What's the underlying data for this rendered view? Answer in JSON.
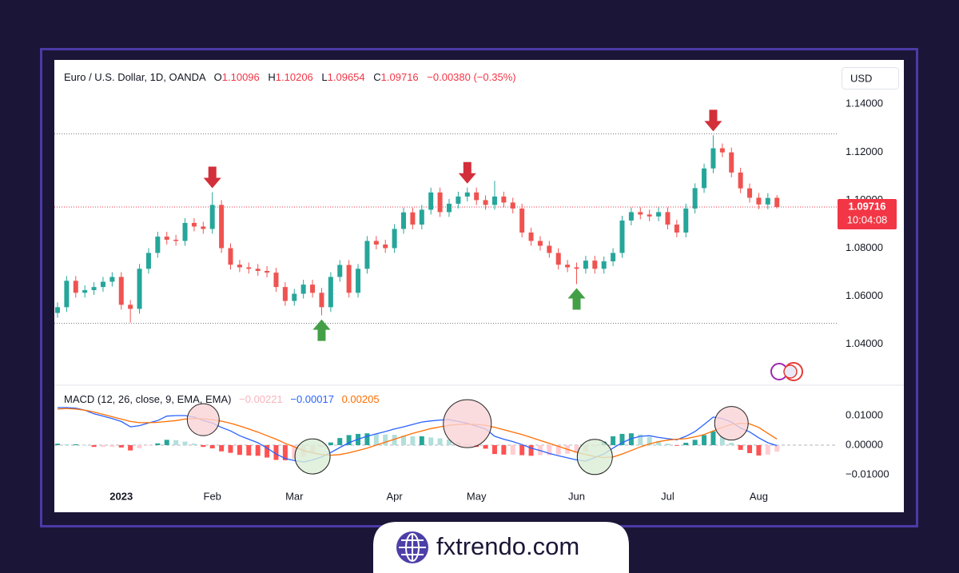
{
  "chart_data": [
    {
      "type": "candlestick",
      "title": "Euro / U.S. Dollar, 1D, OANDA",
      "ohlc_names": [
        "O",
        "H",
        "L",
        "C"
      ],
      "change": "−0.00380 (−0.35%)",
      "currency": "USD",
      "countdown": "10:04:08",
      "x": [
        0,
        1,
        2,
        3,
        4,
        5,
        6,
        7,
        8,
        9,
        10,
        11,
        12,
        13,
        14,
        15,
        16,
        17,
        18,
        19,
        20,
        21,
        22,
        23,
        24,
        25,
        26,
        27,
        28,
        29,
        30,
        31,
        32,
        33,
        34,
        35,
        36,
        37,
        38,
        39,
        40,
        41,
        42,
        43,
        44,
        45,
        46,
        47,
        48,
        49,
        50,
        51,
        52,
        53,
        54,
        55,
        56,
        57,
        58,
        59,
        60,
        61,
        62,
        63,
        64,
        65,
        66,
        67,
        68,
        69,
        70,
        71,
        72,
        73,
        74,
        75,
        76,
        77,
        78,
        79
      ],
      "open": [
        1.053,
        1.0554,
        1.0664,
        1.0614,
        1.0625,
        1.0638,
        1.066,
        1.068,
        1.0564,
        1.0547,
        1.0714,
        1.078,
        1.0848,
        1.0835,
        1.083,
        1.0905,
        1.089,
        1.088,
        1.098,
        1.08,
        1.0731,
        1.072,
        1.0714,
        1.0705,
        1.0698,
        1.0638,
        1.058,
        1.061,
        1.0648,
        1.0614,
        1.0554,
        1.068,
        1.073,
        1.0614,
        1.0714,
        1.083,
        1.0815,
        1.08,
        1.088,
        1.0949,
        1.0898,
        1.096,
        1.1032,
        1.095,
        1.0985,
        1.1015,
        1.1032,
        1.1,
        1.098,
        1.1015,
        1.099,
        1.0965,
        1.0865,
        1.083,
        1.081,
        1.078,
        1.0731,
        1.072,
        1.0714,
        1.0748,
        1.0714,
        1.0745,
        1.078,
        1.0915,
        1.095,
        1.094,
        1.0932,
        1.095,
        1.0898,
        1.0865,
        1.0965,
        1.105,
        1.1132,
        1.1216,
        1.1199,
        1.1115,
        1.1049,
        1.101,
        1.0982,
        1.10096
      ],
      "high": [
        1.0574,
        1.0684,
        1.0684,
        1.0645,
        1.0658,
        1.068,
        1.07,
        1.07,
        1.0584,
        1.0734,
        1.08,
        1.0868,
        1.0868,
        1.0855,
        1.0925,
        1.0925,
        1.091,
        1.1033,
        1.1,
        1.082,
        1.0751,
        1.074,
        1.0734,
        1.0725,
        1.0718,
        1.0658,
        1.063,
        1.0668,
        1.0668,
        1.0634,
        1.07,
        1.075,
        1.075,
        1.0734,
        1.085,
        1.085,
        1.0835,
        1.09,
        1.0969,
        1.0969,
        1.098,
        1.1052,
        1.1052,
        1.1005,
        1.1035,
        1.1052,
        1.1052,
        1.102,
        1.108,
        1.1035,
        1.101,
        1.0985,
        1.0885,
        1.085,
        1.083,
        1.08,
        1.0751,
        1.074,
        1.0768,
        1.0768,
        1.0765,
        1.08,
        1.0935,
        1.097,
        1.097,
        1.096,
        1.097,
        1.097,
        1.0918,
        1.0985,
        1.107,
        1.1152,
        1.127,
        1.1236,
        1.1219,
        1.1135,
        1.1069,
        1.103,
        1.1029,
        1.10206
      ],
      "low": [
        1.051,
        1.0534,
        1.0594,
        1.0594,
        1.0605,
        1.0618,
        1.064,
        1.0544,
        1.049,
        1.0527,
        1.0694,
        1.076,
        1.0815,
        1.081,
        1.081,
        1.087,
        1.086,
        1.086,
        1.078,
        1.0711,
        1.07,
        1.0694,
        1.0685,
        1.0678,
        1.0618,
        1.056,
        1.056,
        1.059,
        1.0594,
        1.052,
        1.0534,
        1.066,
        1.0594,
        1.0594,
        1.0694,
        1.0795,
        1.078,
        1.078,
        1.086,
        1.0878,
        1.0878,
        1.094,
        1.093,
        1.093,
        1.0965,
        1.0995,
        1.098,
        1.096,
        1.096,
        1.097,
        1.0945,
        1.0845,
        1.081,
        1.079,
        1.076,
        1.0711,
        1.07,
        1.065,
        1.0694,
        1.0694,
        1.0694,
        1.0725,
        1.076,
        1.0895,
        1.092,
        1.0912,
        1.0912,
        1.0878,
        1.0845,
        1.0845,
        1.0945,
        1.103,
        1.1112,
        1.1179,
        1.1095,
        1.1029,
        1.099,
        1.0962,
        1.0962,
        1.09654
      ],
      "close": [
        1.0554,
        1.0664,
        1.0614,
        1.0625,
        1.0638,
        1.066,
        1.068,
        1.0564,
        1.0547,
        1.0714,
        1.078,
        1.0848,
        1.0835,
        1.083,
        1.0905,
        1.089,
        1.088,
        1.098,
        1.08,
        1.0731,
        1.072,
        1.0714,
        1.0705,
        1.0698,
        1.0638,
        1.058,
        1.061,
        1.0648,
        1.0614,
        1.0554,
        1.068,
        1.073,
        1.0614,
        1.0714,
        1.083,
        1.0815,
        1.08,
        1.088,
        1.0949,
        1.0898,
        1.096,
        1.1032,
        1.095,
        1.0985,
        1.1015,
        1.1032,
        1.1,
        1.098,
        1.1015,
        1.099,
        1.0965,
        1.0865,
        1.083,
        1.081,
        1.078,
        1.0731,
        1.072,
        1.0714,
        1.0748,
        1.0714,
        1.0745,
        1.078,
        1.0915,
        1.095,
        1.094,
        1.0932,
        1.095,
        1.0898,
        1.0865,
        1.0965,
        1.105,
        1.1132,
        1.1216,
        1.1199,
        1.1115,
        1.1049,
        1.101,
        1.0982,
        1.1009,
        1.09716
      ],
      "xlim": [
        -0.35,
        85.65
      ],
      "ylim": [
        1.0229,
        1.1584
      ],
      "yticks": [
        {
          "value": 1.04,
          "label": "1.04000"
        },
        {
          "value": 1.06,
          "label": "1.06000"
        },
        {
          "value": 1.08,
          "label": "1.08000"
        },
        {
          "value": 1.1,
          "label": "1.10000"
        },
        {
          "value": 1.12,
          "label": "1.12000"
        },
        {
          "value": 1.14,
          "label": "1.14000"
        }
      ],
      "grid": false,
      "up_color": "#26a69a",
      "down_color": "#ef5350",
      "last_price_color": "#f23645",
      "levels": [
        1.1276,
        1.0487
      ],
      "level_color": "#787b86",
      "arrows": {
        "down": [
          17,
          45,
          72
        ],
        "up": [
          29,
          57
        ]
      },
      "arrow_colors": {
        "down": "#d32f3a",
        "up": "#43a047"
      }
    },
    {
      "type": "macd",
      "title": "MACD (12, 26, close, 9, EMA, EMA)",
      "x": [
        0,
        1,
        2,
        3,
        4,
        5,
        6,
        7,
        8,
        9,
        10,
        11,
        12,
        13,
        14,
        15,
        16,
        17,
        18,
        19,
        20,
        21,
        22,
        23,
        24,
        25,
        26,
        27,
        28,
        29,
        30,
        31,
        32,
        33,
        34,
        35,
        36,
        37,
        38,
        39,
        40,
        41,
        42,
        43,
        44,
        45,
        46,
        47,
        48,
        49,
        50,
        51,
        52,
        53,
        54,
        55,
        56,
        57,
        58,
        59,
        60,
        61,
        62,
        63,
        64,
        65,
        66,
        67,
        68,
        69,
        70,
        71,
        72,
        73,
        74,
        75,
        76,
        77,
        78,
        79
      ],
      "series": [
        {
          "kind": "histogram",
          "color": "#f7b4bd",
          "last_label": "−0.00221",
          "values": [
            0.0005,
            0.0003,
            0.0003,
            0.0,
            -0.0006,
            -0.0006,
            -0.0006,
            -0.0008,
            -0.0018,
            -0.001,
            -0.0001,
            0.0006,
            0.0018,
            0.0017,
            0.0012,
            0.0005,
            -0.0006,
            -0.0011,
            -0.0021,
            -0.0026,
            -0.0033,
            -0.0035,
            -0.0036,
            -0.0042,
            -0.005,
            -0.0051,
            -0.0046,
            -0.0039,
            -0.0024,
            -0.0008,
            0.0009,
            0.0024,
            0.0034,
            0.0038,
            0.004,
            0.0038,
            0.0036,
            0.0035,
            0.0032,
            0.003,
            0.003,
            0.0026,
            0.0023,
            0.0019,
            0.001,
            0.0003,
            -0.0006,
            -0.0012,
            -0.003,
            -0.0032,
            -0.0032,
            -0.0034,
            -0.0036,
            -0.0034,
            -0.0034,
            -0.0032,
            -0.0029,
            -0.0026,
            -0.0022,
            -0.0004,
            0.0012,
            0.003,
            0.0038,
            0.004,
            0.0036,
            0.0028,
            0.0014,
            0.0005,
            -0.0002,
            0.0008,
            0.0018,
            0.0034,
            0.0047,
            0.003,
            0.0008,
            -0.0016,
            -0.0027,
            -0.0035,
            -0.0032,
            -0.00221
          ]
        },
        {
          "kind": "line",
          "color": "#2962ff",
          "last_label": "−0.00017",
          "values": [
            0.0127,
            0.0127,
            0.0125,
            0.0118,
            0.0106,
            0.0098,
            0.009,
            0.008,
            0.0062,
            0.0066,
            0.0075,
            0.0083,
            0.0098,
            0.01,
            0.01,
            0.0095,
            0.0083,
            0.0075,
            0.006,
            0.0048,
            0.0032,
            0.002,
            0.0008,
            -0.001,
            -0.003,
            -0.0045,
            -0.0052,
            -0.0057,
            -0.005,
            -0.004,
            -0.0025,
            -0.0008,
            0.0008,
            0.002,
            0.003,
            0.0038,
            0.0046,
            0.0055,
            0.0062,
            0.007,
            0.0078,
            0.0082,
            0.0085,
            0.0086,
            0.008,
            0.0074,
            0.0064,
            0.0055,
            0.003,
            0.002,
            0.0012,
            0.0002,
            -0.001,
            -0.0018,
            -0.0028,
            -0.0036,
            -0.0043,
            -0.005,
            -0.0054,
            -0.0042,
            -0.003,
            -0.001,
            0.0008,
            0.0022,
            0.003,
            0.0032,
            0.0026,
            0.0022,
            0.0018,
            0.003,
            0.0046,
            0.007,
            0.0095,
            0.009,
            0.0078,
            0.0058,
            0.0045,
            0.0025,
            0.0008,
            -0.00017
          ]
        },
        {
          "kind": "line",
          "color": "#ff6d00",
          "last_label": "0.00205",
          "values": [
            0.0122,
            0.0124,
            0.0122,
            0.0118,
            0.0112,
            0.0104,
            0.0096,
            0.0088,
            0.008,
            0.0076,
            0.0076,
            0.0077,
            0.008,
            0.0083,
            0.0088,
            0.009,
            0.0089,
            0.0086,
            0.0081,
            0.0074,
            0.0065,
            0.0055,
            0.0044,
            0.0032,
            0.002,
            0.0006,
            -0.0006,
            -0.0018,
            -0.0026,
            -0.0032,
            -0.0034,
            -0.0032,
            -0.0026,
            -0.0018,
            -0.001,
            0.0,
            0.001,
            0.002,
            0.003,
            0.004,
            0.0048,
            0.0056,
            0.0062,
            0.0067,
            0.007,
            0.0071,
            0.007,
            0.0067,
            0.006,
            0.0052,
            0.0044,
            0.0036,
            0.0026,
            0.0016,
            0.0006,
            -0.0004,
            -0.0014,
            -0.0024,
            -0.0032,
            -0.0038,
            -0.0042,
            -0.004,
            -0.003,
            -0.0018,
            -0.0006,
            0.0004,
            0.0012,
            0.0017,
            0.002,
            0.0022,
            0.0028,
            0.0036,
            0.0048,
            0.006,
            0.007,
            0.0074,
            0.0072,
            0.006,
            0.004,
            0.00205
          ]
        }
      ],
      "histogram_colors": {
        "rising_above": "#26a69a",
        "falling_above": "#b2dfdb",
        "rising_below": "#ffcdd2",
        "falling_below": "#ff5252"
      },
      "xlim": [
        -0.35,
        85.65
      ],
      "ylim": [
        -0.01297,
        0.02027
      ],
      "yticks": [
        {
          "value": -0.01,
          "label": "−0.01000"
        },
        {
          "value": 0,
          "label": "0.00000"
        },
        {
          "value": 0.01,
          "label": "0.01000"
        }
      ],
      "xticks": [
        {
          "value": 7,
          "label": "2023"
        },
        {
          "value": 17,
          "label": "Feb"
        },
        {
          "value": 26,
          "label": "Mar"
        },
        {
          "value": 37,
          "label": "Apr"
        },
        {
          "value": 46,
          "label": "May"
        },
        {
          "value": 57,
          "label": "Jun"
        },
        {
          "value": 67,
          "label": "Jul"
        },
        {
          "value": 77,
          "label": "Aug"
        }
      ],
      "zero_line": true,
      "crossovers": [
        {
          "index": 16,
          "kind": "bearish"
        },
        {
          "index": 28,
          "kind": "bullish"
        },
        {
          "index": 45,
          "kind": "bearish"
        },
        {
          "index": 59,
          "kind": "bullish"
        },
        {
          "index": 74,
          "kind": "bearish"
        }
      ],
      "crossover_colors": {
        "bearish": "#fad3d6",
        "bullish": "#d9eed6"
      }
    }
  ],
  "footer": {
    "brand": "fxtrendo.com"
  }
}
